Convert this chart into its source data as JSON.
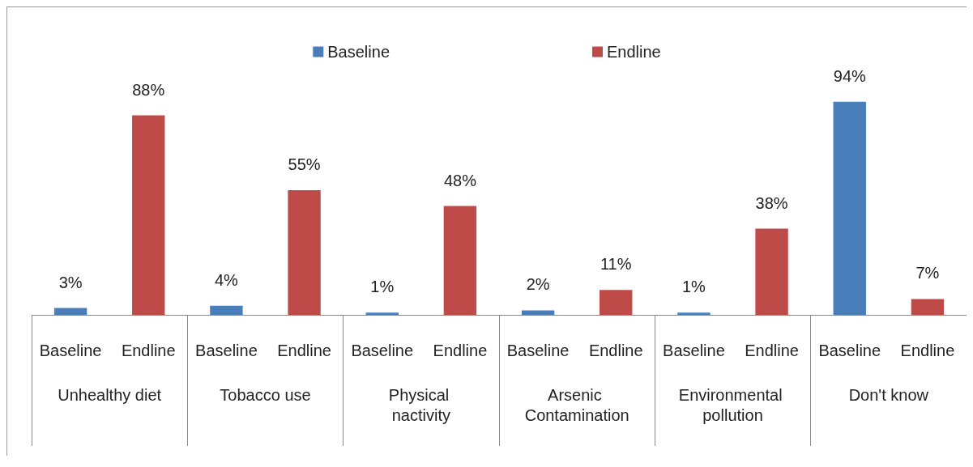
{
  "chart_data": {
    "type": "bar",
    "categories": [
      "Unhealthy diet",
      "Tobacco use",
      "Physical nactivity",
      "Arsenic Contamination",
      "Environmental pollution",
      "Don't know"
    ],
    "series": [
      {
        "name": "Baseline",
        "color": "#4a7ebb",
        "values": [
          3,
          4,
          1,
          2,
          1,
          94
        ],
        "value_labels": [
          "3%",
          "4%",
          "1%",
          "2%",
          "1%",
          "94%"
        ]
      },
      {
        "name": "Endline",
        "color": "#be4b48",
        "values": [
          88,
          55,
          48,
          11,
          38,
          7
        ],
        "value_labels": [
          "88%",
          "55%",
          "48%",
          "11%",
          "38%",
          "7%"
        ]
      }
    ],
    "legend": "top",
    "grid": false
  }
}
